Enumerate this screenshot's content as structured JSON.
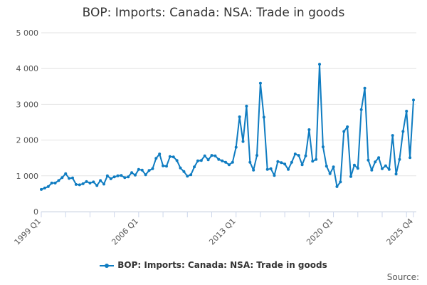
{
  "chart_data": {
    "type": "line",
    "title": "BOP: Imports: Canada: NSA: Trade in goods",
    "xlabel": "",
    "ylabel": "",
    "ylim": [
      0,
      5000
    ],
    "yticks": [
      0,
      1000,
      2000,
      3000,
      4000,
      5000
    ],
    "ytick_labels": [
      "0",
      "1 000",
      "2 000",
      "3 000",
      "4 000",
      "5 000"
    ],
    "xtick_labels": [
      "1999 Q1",
      "2006 Q1",
      "2013 Q1",
      "2020 Q1",
      "2025 Q4"
    ],
    "grid": true,
    "legend_position": "bottom",
    "color": "#0f7cc1",
    "x_start": "1999 Q1",
    "x_end": "2025 Q4",
    "series": [
      {
        "name": "BOP: Imports: Canada: NSA: Trade in goods",
        "values": [
          620,
          660,
          700,
          800,
          800,
          870,
          950,
          1060,
          930,
          940,
          760,
          750,
          780,
          840,
          800,
          830,
          730,
          870,
          770,
          1000,
          920,
          970,
          1000,
          1010,
          950,
          970,
          1090,
          1020,
          1180,
          1160,
          1030,
          1150,
          1200,
          1490,
          1610,
          1280,
          1270,
          1540,
          1530,
          1430,
          1220,
          1120,
          990,
          1030,
          1250,
          1420,
          1430,
          1560,
          1450,
          1570,
          1560,
          1460,
          1420,
          1380,
          1310,
          1380,
          1800,
          2650,
          1960,
          2950,
          1380,
          1160,
          1570,
          3590,
          2640,
          1180,
          1200,
          1010,
          1400,
          1370,
          1330,
          1180,
          1380,
          1610,
          1570,
          1310,
          1560,
          2290,
          1410,
          1460,
          4120,
          1810,
          1270,
          1060,
          1250,
          700,
          830,
          2240,
          2370,
          980,
          1300,
          1210,
          2850,
          3450,
          1440,
          1160,
          1390,
          1510,
          1200,
          1280,
          1180,
          2130,
          1050,
          1460,
          2240,
          2810,
          1510,
          3120
        ]
      }
    ]
  },
  "source_label": "Source:"
}
